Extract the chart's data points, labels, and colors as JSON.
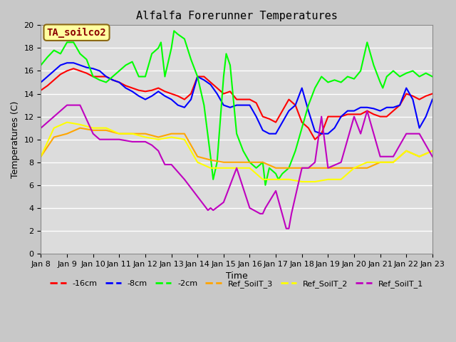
{
  "title": "Alfalfa Forerunner Temperatures",
  "xlabel": "Time",
  "ylabel": "Temperatures (C)",
  "annotation": "TA_soilco2",
  "ylim": [
    0,
    20
  ],
  "xlim": [
    0,
    15
  ],
  "legend_labels": [
    "-16cm",
    "-8cm",
    "-2cm",
    "Ref_SoilT_3",
    "Ref_SoilT_2",
    "Ref_SoilT_1"
  ],
  "legend_colors": [
    "#ff0000",
    "#0000ff",
    "#00ff00",
    "#ffa500",
    "#ffff00",
    "#bf00bf"
  ],
  "x_tick_labels": [
    "Jan 8",
    "Jan 9",
    "Jan 10",
    "Jan 11",
    "Jan 12",
    "Jan 13",
    "Jan 14",
    "Jan 15",
    "Jan 16",
    "Jan 17",
    "Jan 18",
    "Jan 19",
    "Jan 20",
    "Jan 21",
    "Jan 22",
    "Jan 23"
  ],
  "series": {
    "red_16cm": {
      "color": "#ff0000",
      "lw": 1.5,
      "x": [
        0,
        0.25,
        0.5,
        0.75,
        1.0,
        1.25,
        1.5,
        1.75,
        2.0,
        2.25,
        2.5,
        2.75,
        3.0,
        3.25,
        3.5,
        3.75,
        4.0,
        4.25,
        4.5,
        4.75,
        5.0,
        5.25,
        5.5,
        5.75,
        6.0,
        6.25,
        6.5,
        6.75,
        7.0,
        7.25,
        7.5,
        7.75,
        8.0,
        8.25,
        8.5,
        8.75,
        9.0,
        9.25,
        9.5,
        9.75,
        10.0,
        10.25,
        10.5,
        10.75,
        11.0,
        11.25,
        11.5,
        11.75,
        12.0,
        12.25,
        12.5,
        12.75,
        13.0,
        13.25,
        13.5,
        13.75,
        14.0,
        14.25,
        14.5,
        14.75,
        15.0
      ],
      "y": [
        14.3,
        14.7,
        15.2,
        15.7,
        16.0,
        16.2,
        16.0,
        15.8,
        15.5,
        15.5,
        15.5,
        15.2,
        15.0,
        14.7,
        14.5,
        14.3,
        14.2,
        14.3,
        14.5,
        14.2,
        14.0,
        13.8,
        13.5,
        14.0,
        15.5,
        15.5,
        15.0,
        14.5,
        14.0,
        14.2,
        13.5,
        13.5,
        13.5,
        13.2,
        12.0,
        11.8,
        11.5,
        12.5,
        13.5,
        13.0,
        11.5,
        11.0,
        10.0,
        10.5,
        12.0,
        12.0,
        12.0,
        12.2,
        12.2,
        12.2,
        12.5,
        12.2,
        12.0,
        12.0,
        12.5,
        13.0,
        14.0,
        13.8,
        13.5,
        13.8,
        14.0
      ]
    },
    "blue_8cm": {
      "color": "#0000ff",
      "lw": 1.5,
      "x": [
        0,
        0.25,
        0.5,
        0.75,
        1.0,
        1.25,
        1.5,
        1.75,
        2.0,
        2.25,
        2.5,
        2.75,
        3.0,
        3.25,
        3.5,
        3.75,
        4.0,
        4.25,
        4.5,
        4.75,
        5.0,
        5.25,
        5.5,
        5.75,
        6.0,
        6.25,
        6.5,
        6.75,
        7.0,
        7.25,
        7.5,
        7.75,
        8.0,
        8.25,
        8.5,
        8.75,
        9.0,
        9.25,
        9.5,
        9.75,
        10.0,
        10.25,
        10.5,
        10.75,
        11.0,
        11.25,
        11.5,
        11.75,
        12.0,
        12.25,
        12.5,
        12.75,
        13.0,
        13.25,
        13.5,
        13.75,
        14.0,
        14.25,
        14.5,
        14.75,
        15.0
      ],
      "y": [
        15.0,
        15.5,
        16.0,
        16.5,
        16.7,
        16.7,
        16.5,
        16.3,
        16.2,
        16.0,
        15.5,
        15.2,
        15.0,
        14.5,
        14.2,
        13.8,
        13.5,
        13.8,
        14.2,
        13.8,
        13.5,
        13.0,
        12.8,
        13.5,
        15.5,
        15.2,
        14.8,
        14.0,
        13.0,
        12.8,
        13.0,
        13.0,
        13.0,
        12.0,
        10.8,
        10.5,
        10.5,
        11.5,
        12.5,
        13.0,
        14.5,
        12.5,
        10.7,
        10.5,
        10.5,
        11.0,
        12.0,
        12.5,
        12.5,
        12.8,
        12.8,
        12.7,
        12.5,
        12.8,
        12.8,
        13.0,
        14.5,
        13.5,
        11.0,
        12.0,
        13.5
      ]
    },
    "green_2cm": {
      "color": "#00ff00",
      "lw": 1.5,
      "x": [
        0,
        0.25,
        0.5,
        0.75,
        1.0,
        1.25,
        1.5,
        1.75,
        2.0,
        2.25,
        2.5,
        2.75,
        3.0,
        3.25,
        3.5,
        3.75,
        4.0,
        4.25,
        4.5,
        4.6,
        4.75,
        5.0,
        5.1,
        5.25,
        5.5,
        5.75,
        6.0,
        6.25,
        6.5,
        6.6,
        6.75,
        7.0,
        7.1,
        7.25,
        7.5,
        7.75,
        8.0,
        8.25,
        8.5,
        8.6,
        8.75,
        9.0,
        9.1,
        9.25,
        9.5,
        9.75,
        10.0,
        10.25,
        10.5,
        10.75,
        11.0,
        11.25,
        11.5,
        11.75,
        12.0,
        12.25,
        12.5,
        12.75,
        13.0,
        13.1,
        13.25,
        13.5,
        13.75,
        14.0,
        14.25,
        14.5,
        14.75,
        15.0
      ],
      "y": [
        16.5,
        17.2,
        17.8,
        17.5,
        18.5,
        18.5,
        17.5,
        17.0,
        15.5,
        15.2,
        15.0,
        15.5,
        16.0,
        16.5,
        16.8,
        15.5,
        15.5,
        17.5,
        18.0,
        18.5,
        15.5,
        18.0,
        19.5,
        19.2,
        18.8,
        17.0,
        15.5,
        13.0,
        8.5,
        6.5,
        8.0,
        15.5,
        17.5,
        16.5,
        10.5,
        9.0,
        8.0,
        7.5,
        8.0,
        6.0,
        7.5,
        7.0,
        6.5,
        7.0,
        7.5,
        9.0,
        11.0,
        13.0,
        14.5,
        15.5,
        15.0,
        15.2,
        15.0,
        15.5,
        15.3,
        16.0,
        18.5,
        16.5,
        15.0,
        14.5,
        15.5,
        16.0,
        15.5,
        15.8,
        16.0,
        15.5,
        15.8,
        15.5
      ]
    },
    "orange_ref3": {
      "color": "#ffa500",
      "lw": 1.5,
      "x": [
        0,
        0.5,
        1.0,
        1.5,
        2.0,
        2.5,
        3.0,
        3.5,
        4.0,
        4.5,
        5.0,
        5.5,
        6.0,
        6.5,
        7.0,
        7.5,
        8.0,
        8.5,
        9.0,
        9.5,
        10.0,
        10.5,
        11.0,
        11.5,
        12.0,
        12.5,
        13.0,
        13.5,
        14.0,
        14.5,
        15.0
      ],
      "y": [
        8.5,
        10.2,
        10.5,
        11.0,
        10.8,
        10.8,
        10.5,
        10.5,
        10.5,
        10.2,
        10.5,
        10.5,
        8.5,
        8.2,
        8.0,
        8.0,
        8.0,
        8.0,
        7.5,
        7.5,
        7.5,
        7.5,
        7.5,
        7.5,
        7.5,
        7.5,
        8.0,
        8.0,
        9.0,
        8.5,
        9.0
      ]
    },
    "yellow_ref2": {
      "color": "#ffff00",
      "lw": 1.5,
      "x": [
        0,
        0.5,
        1.0,
        1.5,
        2.0,
        2.5,
        3.0,
        3.5,
        4.0,
        4.5,
        5.0,
        5.5,
        6.0,
        6.5,
        7.0,
        7.5,
        8.0,
        8.5,
        9.0,
        9.5,
        10.0,
        10.5,
        11.0,
        11.5,
        12.0,
        12.5,
        13.0,
        13.5,
        14.0,
        14.5,
        15.0
      ],
      "y": [
        8.5,
        11.0,
        11.5,
        11.3,
        11.0,
        11.0,
        10.5,
        10.5,
        10.2,
        10.0,
        10.2,
        10.0,
        8.0,
        7.5,
        7.5,
        7.5,
        7.5,
        6.5,
        6.5,
        6.5,
        6.3,
        6.3,
        6.5,
        6.5,
        7.5,
        8.0,
        8.0,
        8.0,
        9.0,
        8.5,
        9.0
      ]
    },
    "purple_ref1": {
      "color": "#bf00bf",
      "lw": 1.5,
      "x": [
        0,
        0.25,
        0.5,
        0.75,
        1.0,
        1.5,
        2.0,
        2.25,
        2.5,
        3.0,
        3.5,
        4.0,
        4.25,
        4.5,
        4.6,
        4.75,
        5.0,
        5.5,
        6.0,
        6.4,
        6.5,
        6.6,
        7.0,
        7.5,
        8.0,
        8.4,
        8.5,
        8.6,
        9.0,
        9.4,
        9.5,
        9.6,
        10.0,
        10.25,
        10.5,
        10.75,
        11.0,
        11.5,
        12.0,
        12.25,
        12.5,
        12.75,
        13.0,
        13.5,
        14.0,
        14.5,
        15.0
      ],
      "y": [
        11.0,
        11.5,
        12.0,
        12.5,
        13.0,
        13.0,
        10.5,
        10.0,
        10.0,
        10.0,
        9.8,
        9.8,
        9.5,
        9.0,
        8.5,
        7.8,
        7.8,
        6.5,
        5.0,
        3.8,
        4.0,
        3.8,
        4.5,
        7.5,
        4.0,
        3.5,
        3.5,
        4.0,
        5.5,
        2.2,
        2.2,
        3.5,
        7.5,
        7.5,
        8.0,
        12.0,
        7.5,
        8.0,
        12.0,
        10.5,
        12.5,
        10.5,
        8.5,
        8.5,
        10.5,
        10.5,
        8.5
      ]
    }
  }
}
